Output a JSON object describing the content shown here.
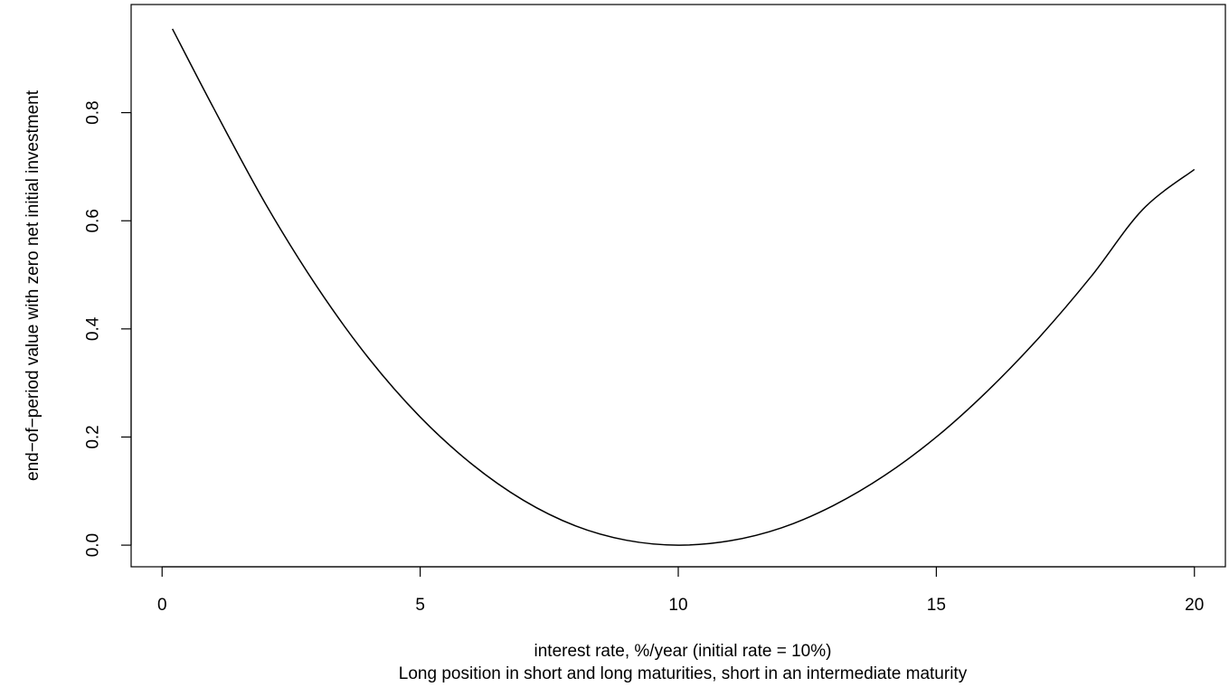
{
  "chart_data": {
    "type": "line",
    "title": "",
    "xlabel": "interest rate, %/year (initial rate = 10%)",
    "subtitle": "Long position in short and long maturities, short in an intermediate maturity",
    "ylabel": "end−of−period value with zero net initial investment",
    "xlim": [
      -0.6,
      20.6
    ],
    "ylim": [
      -0.04,
      1.0
    ],
    "x_ticks": [
      0,
      5,
      10,
      15,
      20
    ],
    "x_tick_labels": [
      "0",
      "5",
      "10",
      "15",
      "20"
    ],
    "y_ticks": [
      0.0,
      0.2,
      0.4,
      0.6,
      0.8
    ],
    "y_tick_labels": [
      "0.0",
      "0.2",
      "0.4",
      "0.6",
      "0.8"
    ],
    "grid": false,
    "series": [
      {
        "color": "#000000",
        "x": [
          0.2,
          1,
          2,
          3,
          4,
          5,
          6,
          7,
          8,
          9,
          10,
          11,
          12,
          13,
          14,
          15,
          16,
          17,
          18,
          19,
          20
        ],
        "y": [
          0.955,
          0.808,
          0.632,
          0.478,
          0.346,
          0.237,
          0.15,
          0.083,
          0.036,
          0.009,
          0.0,
          0.008,
          0.032,
          0.073,
          0.129,
          0.2,
          0.286,
          0.385,
          0.497,
          0.621,
          0.695
        ]
      }
    ]
  }
}
